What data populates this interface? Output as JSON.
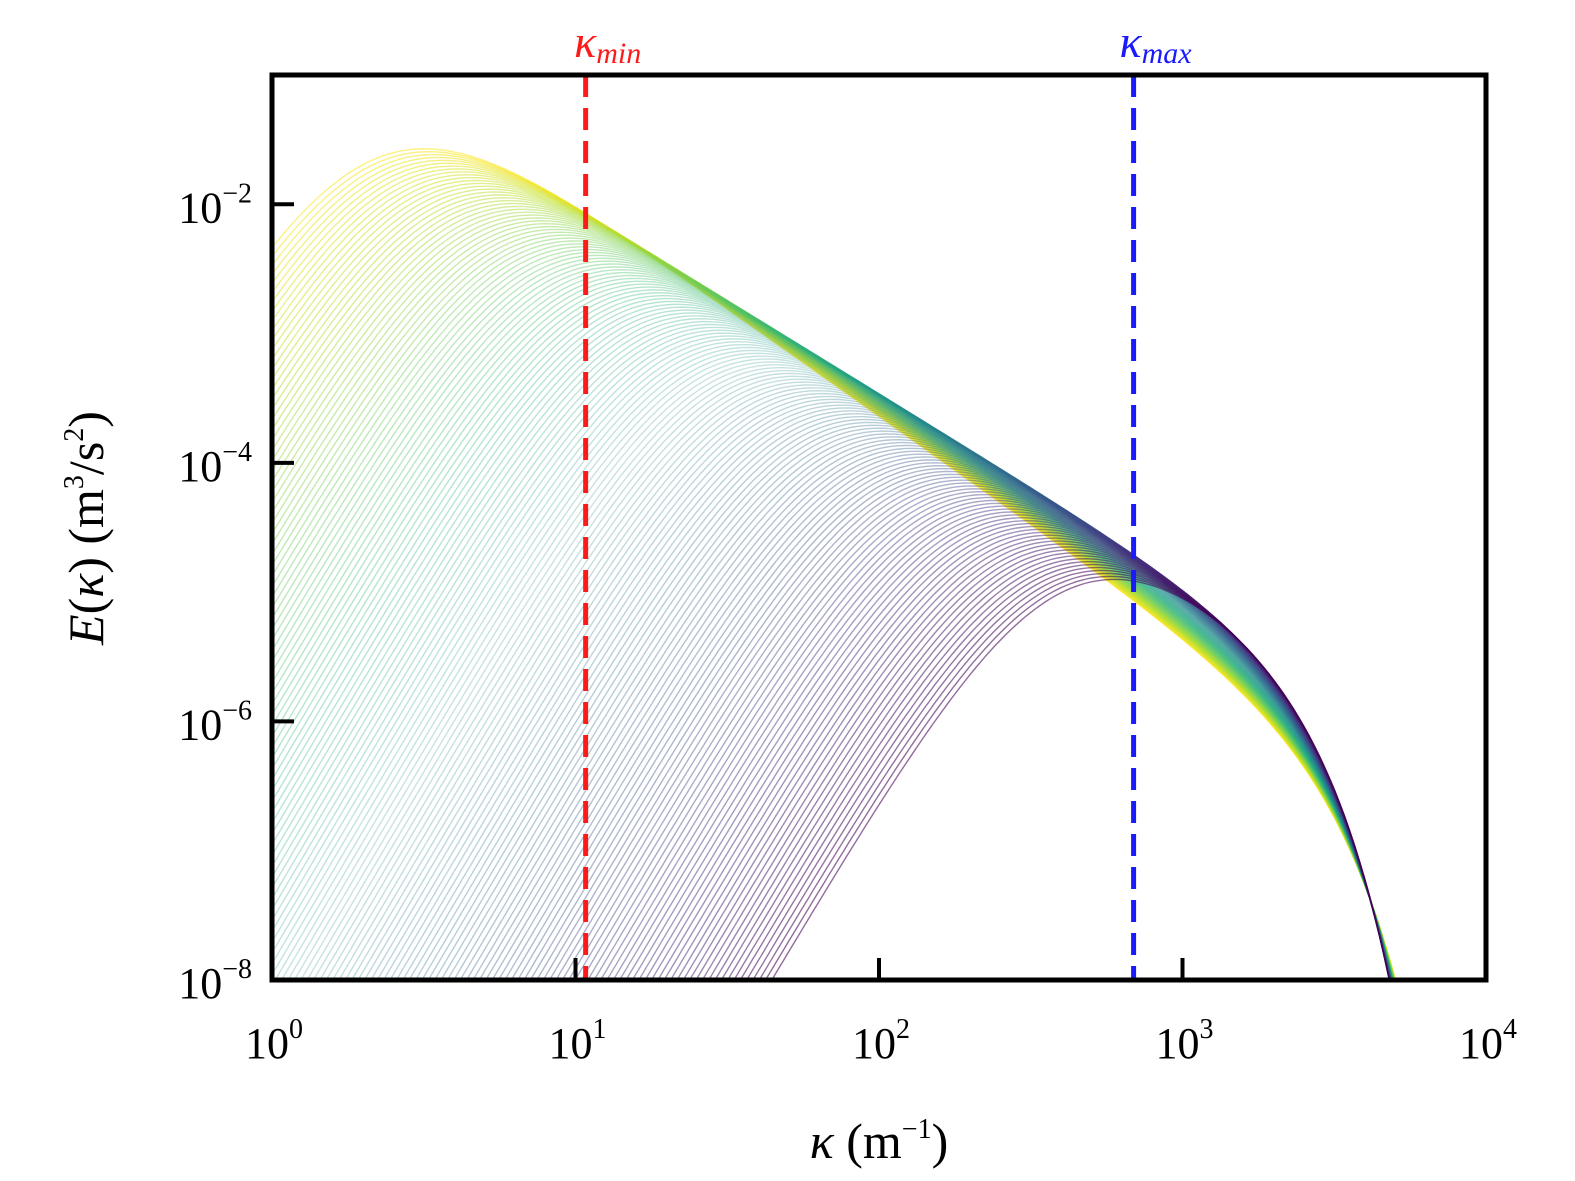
{
  "chart_data": {
    "type": "line",
    "title": "",
    "xlabel": "κ (m⁻¹)",
    "ylabel": "E(κ) (m³/s²)",
    "xscale": "log",
    "yscale": "log",
    "xlim": [
      1,
      10000
    ],
    "ylim": [
      1e-08,
      0.1
    ],
    "grid": false,
    "legend": "none",
    "x_ticks": [
      {
        "value": 1,
        "base": "10",
        "exp": "0"
      },
      {
        "value": 10,
        "base": "10",
        "exp": "1"
      },
      {
        "value": 100,
        "base": "10",
        "exp": "2"
      },
      {
        "value": 1000,
        "base": "10",
        "exp": "3"
      },
      {
        "value": 10000,
        "base": "10",
        "exp": "4"
      }
    ],
    "y_ticks": [
      {
        "value": 1e-08,
        "base": "10",
        "exp": "−8"
      },
      {
        "value": 1e-06,
        "base": "10",
        "exp": "−6"
      },
      {
        "value": 0.0001,
        "base": "10",
        "exp": "−4"
      },
      {
        "value": 0.01,
        "base": "10",
        "exp": "−2"
      }
    ],
    "vertical_lines": [
      {
        "label_main": "κ",
        "label_sub": "min",
        "x": 10.8,
        "color": "#ff1a1a",
        "style": "dashed"
      },
      {
        "label_main": "κ",
        "label_sub": "max",
        "x": 690,
        "color": "#1a1aff",
        "style": "dashed"
      }
    ],
    "colormap": "viridis",
    "series_family": {
      "description": "von Karman energy spectra, peak wavenumber sweeping upward",
      "count": 150,
      "peak_x_range": [
        2.5,
        500
      ],
      "peak_y_range": [
        0.025,
        1.2e-05
      ],
      "inertial_slope": -1.6667,
      "dissipation_cutoff_x": 2400,
      "color_order": "yellow (low peak κ) to purple (high peak κ)"
    }
  },
  "colors": {
    "kappa_min": "#ff1a1a",
    "kappa_max": "#1a1aff",
    "axes": "#000000"
  }
}
